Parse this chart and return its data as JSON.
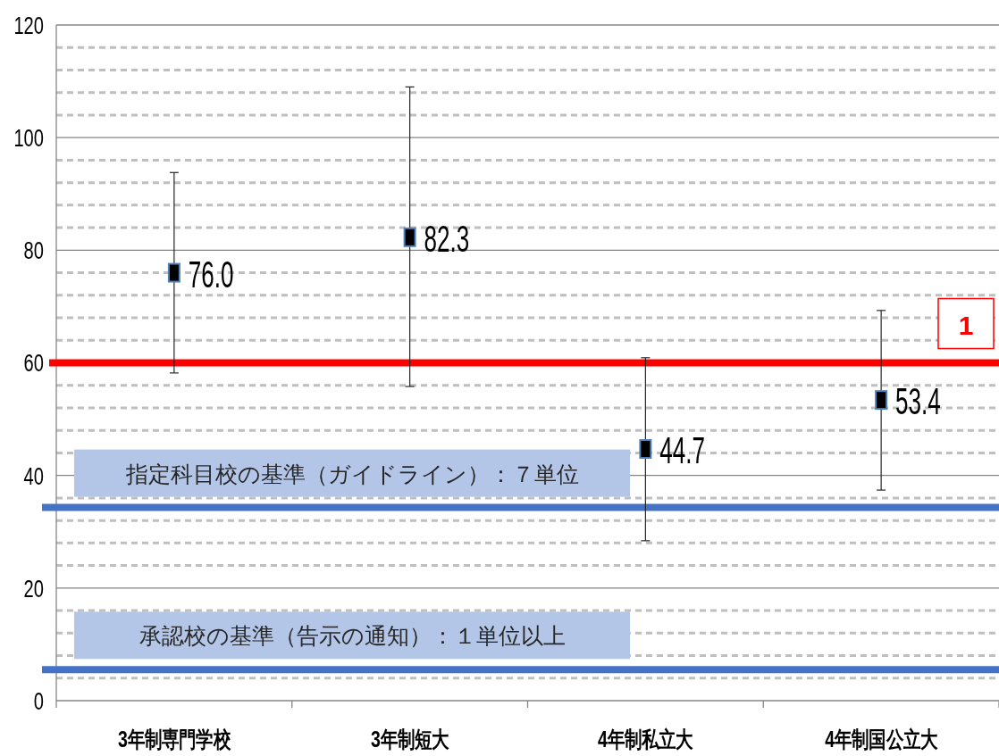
{
  "chart_data": {
    "type": "scatter",
    "marker": "square",
    "color": "#000000",
    "value_labels": [
      "76.0",
      "82.3",
      "44.7",
      "53.4"
    ],
    "grid": "y",
    "annotations": [
      "1"
    ],
    "categories": [
      "3年制専門学校",
      "3年制短大",
      "4年制私立大",
      "4年制国公立大"
    ],
    "values": [
      76.0,
      82.3,
      44.7,
      53.4
    ],
    "errors": [
      [
        58.2,
        93.8
      ],
      [
        55.8,
        109.0
      ],
      [
        28.4,
        60.9
      ],
      [
        37.4,
        69.3
      ]
    ],
    "ylim": [
      0,
      120
    ],
    "yticks": [
      0,
      {
        "value": 4,
        "label": null
      },
      {
        "value": 8,
        "label": null
      },
      {
        "value": 12,
        "label": null
      },
      {
        "value": 16,
        "label": null
      },
      20,
      {
        "value": 24,
        "label": null
      },
      {
        "value": 28,
        "label": null
      },
      {
        "value": 32,
        "label": null
      },
      {
        "value": 36,
        "label": null
      },
      40,
      {
        "value": 44,
        "label": null
      },
      {
        "value": 48,
        "label": null
      },
      {
        "value": 52,
        "label": null
      },
      {
        "value": 56,
        "label": null
      },
      60,
      {
        "value": 64,
        "label": null
      },
      {
        "value": 68,
        "label": null
      },
      {
        "value": 72,
        "label": null
      },
      {
        "value": 76,
        "label": null
      },
      80,
      {
        "value": 84,
        "label": null
      },
      {
        "value": 88,
        "label": null
      },
      {
        "value": 92,
        "label": null
      },
      {
        "value": 96,
        "label": null
      },
      100,
      {
        "value": 104,
        "label": null
      },
      {
        "value": 108,
        "label": null
      },
      {
        "value": 112,
        "label": null
      },
      {
        "value": 116,
        "label": null
      },
      120
    ],
    "ref_lines": [
      {
        "axis": "y",
        "value": 60,
        "color": "#ff0000"
      },
      {
        "axis": "y",
        "value": 34.3,
        "label": "指定科目校の基準（ガイドライン）：７単位",
        "color": "#4472c4"
      },
      {
        "axis": "y",
        "value": 5.5,
        "label": "承認校の基準（告示の通知）：１単位以上",
        "color": "#4472c4"
      }
    ]
  }
}
